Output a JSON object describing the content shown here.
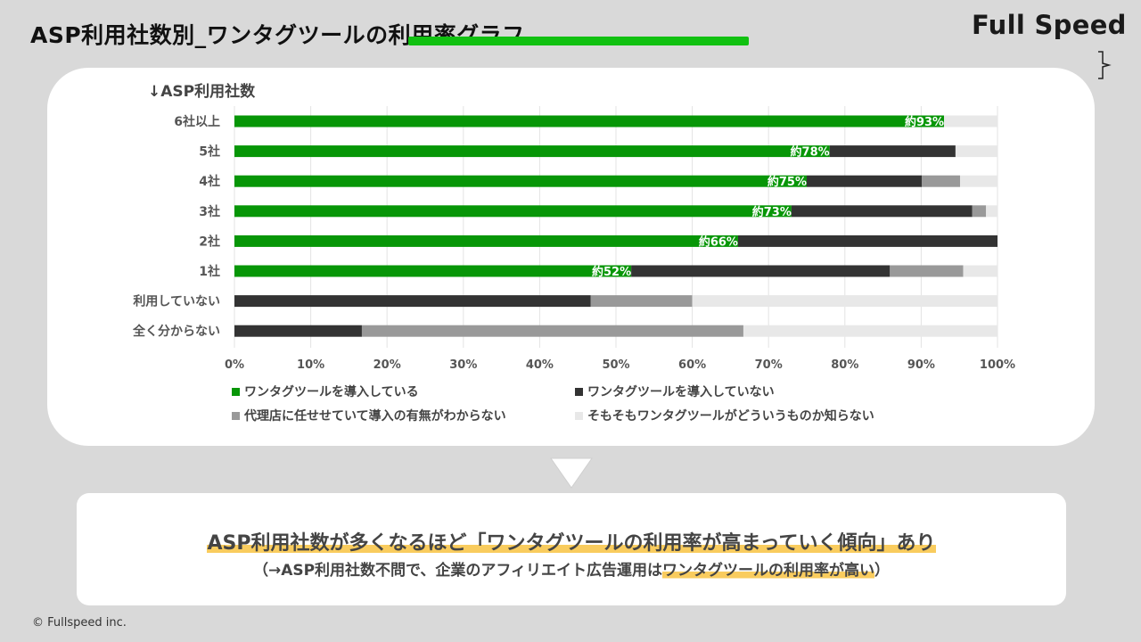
{
  "page": {
    "title": "ASP利用社数別_ワンタグツールの利用率グラフ",
    "logo": "Full Speed",
    "copyright": "© Fullspeed inc."
  },
  "summary": {
    "main_part1": "ASP利用社数が多くなるほど「ワンタグツールの利用率が高まっていく傾向」あり",
    "sub_part1": "（→ASP利用社数不問で、企業のアフィリエイト広告運用は",
    "sub_part2": "ワンタグツールの利用率が高い",
    "sub_part3": "）"
  },
  "chart_data": {
    "type": "bar",
    "orientation": "horizontal",
    "stacked": true,
    "ylabel": "↓ASP利用社数",
    "categories": [
      "6社以上",
      "5社",
      "4社",
      "3社",
      "2社",
      "1社",
      "利用していない",
      "全く分からない"
    ],
    "xlim": [
      0,
      1
    ],
    "x_ticks": [
      "0%",
      "10%",
      "20%",
      "30%",
      "40%",
      "50%",
      "60%",
      "70%",
      "80%",
      "90%",
      "100%"
    ],
    "grid": "vertical",
    "legend_position": "bottom",
    "series": [
      {
        "name": "ワンタグツールを導入している",
        "color": "#079607",
        "values": [
          0.93,
          0.78,
          0.75,
          0.73,
          0.66,
          0.52,
          0.0,
          0.0
        ]
      },
      {
        "name": "ワンタグツールを導入していない",
        "color": "#333333",
        "values": [
          0.0,
          0.165,
          0.151,
          0.237,
          0.34,
          0.339,
          0.467,
          0.167
        ]
      },
      {
        "name": "代理店に任せせていて導入の有無がわからない",
        "color": "#999999",
        "values": [
          0.0,
          0.0,
          0.05,
          0.018,
          0.0,
          0.096,
          0.133,
          0.5
        ]
      },
      {
        "name": "そもそもワンタグツールがどういうものか知らない",
        "color": "#e8e8e8",
        "values": [
          0.07,
          0.055,
          0.049,
          0.015,
          0.0,
          0.045,
          0.4,
          0.333
        ]
      }
    ],
    "data_labels": [
      "約93%",
      "約78%",
      "約75%",
      "約73%",
      "約66%",
      "約52%",
      "",
      ""
    ]
  }
}
